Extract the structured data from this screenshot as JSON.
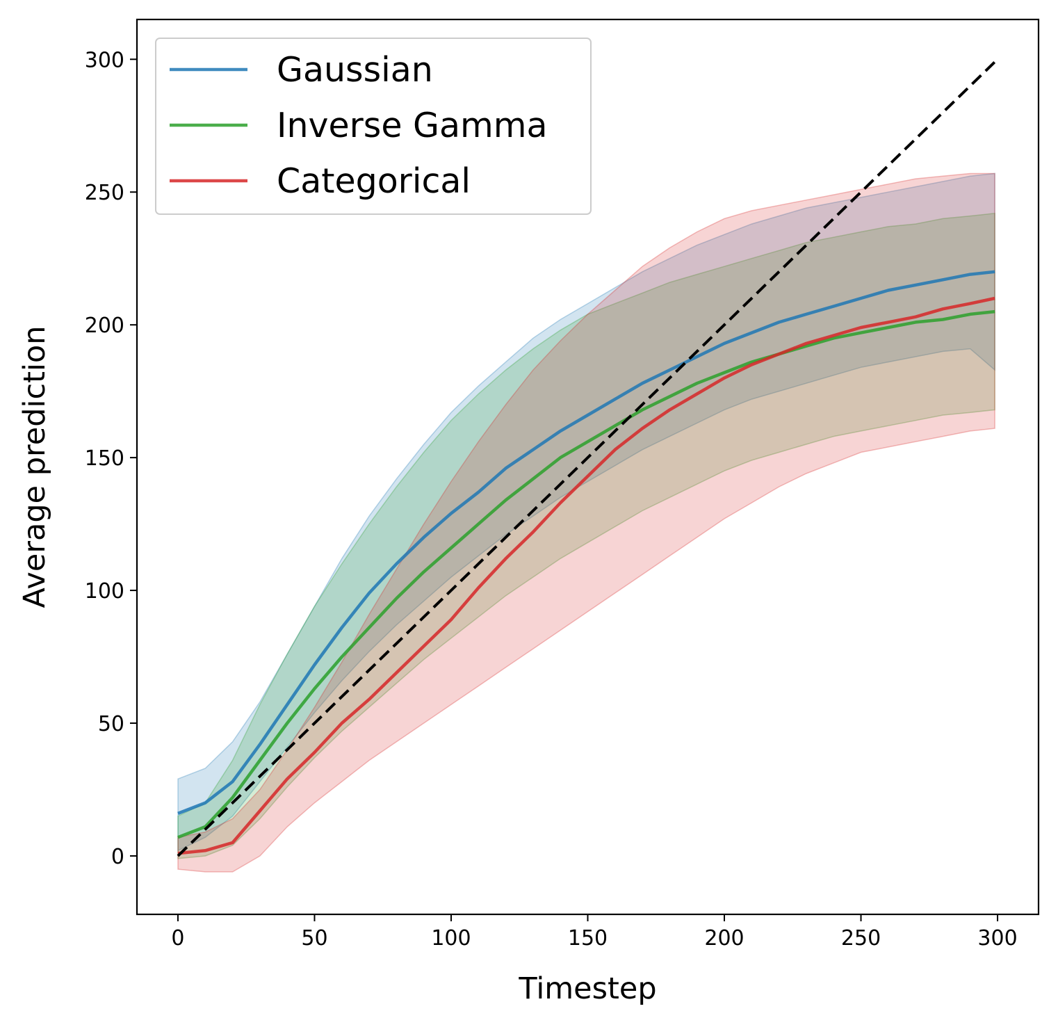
{
  "chart_data": {
    "type": "line",
    "title": "",
    "xlabel": "Timestep",
    "ylabel": "Average prediction",
    "xlim": [
      -15,
      315
    ],
    "ylim": [
      -22,
      315
    ],
    "xticks": [
      0,
      50,
      100,
      150,
      200,
      250,
      300
    ],
    "yticks": [
      0,
      50,
      100,
      150,
      200,
      250,
      300
    ],
    "grid": false,
    "legend_position": "top-left",
    "x": [
      0,
      10,
      20,
      30,
      40,
      50,
      60,
      70,
      80,
      90,
      100,
      110,
      120,
      130,
      140,
      150,
      160,
      170,
      180,
      190,
      200,
      210,
      220,
      230,
      240,
      250,
      260,
      270,
      280,
      290,
      299
    ],
    "series": [
      {
        "name": "Gaussian",
        "color": "#1f77b4",
        "values": [
          16,
          20,
          28,
          42,
          57,
          72,
          86,
          99,
          110,
          120,
          129,
          137,
          146,
          153,
          160,
          166,
          172,
          178,
          183,
          188,
          193,
          197,
          201,
          204,
          207,
          210,
          213,
          215,
          217,
          219,
          220
        ],
        "lower": [
          2,
          7,
          15,
          28,
          41,
          54,
          66,
          77,
          87,
          96,
          105,
          113,
          121,
          128,
          135,
          141,
          147,
          153,
          158,
          163,
          168,
          172,
          175,
          178,
          181,
          184,
          186,
          188,
          190,
          191,
          183
        ],
        "upper": [
          29,
          33,
          43,
          58,
          76,
          94,
          112,
          128,
          142,
          155,
          167,
          177,
          186,
          195,
          202,
          208,
          214,
          220,
          225,
          230,
          234,
          238,
          241,
          244,
          246,
          248,
          250,
          252,
          254,
          256,
          257
        ]
      },
      {
        "name": "Inverse Gamma",
        "color": "#2ca02c",
        "values": [
          7,
          11,
          22,
          36,
          50,
          63,
          75,
          86,
          97,
          107,
          116,
          125,
          134,
          142,
          150,
          156,
          162,
          168,
          173,
          178,
          182,
          186,
          189,
          192,
          195,
          197,
          199,
          201,
          202,
          204,
          205
        ],
        "lower": [
          -1,
          0,
          4,
          14,
          26,
          37,
          47,
          56,
          65,
          74,
          82,
          90,
          98,
          105,
          112,
          118,
          124,
          130,
          135,
          140,
          145,
          149,
          152,
          155,
          158,
          160,
          162,
          164,
          166,
          167,
          168
        ],
        "upper": [
          15,
          20,
          36,
          57,
          76,
          94,
          110,
          125,
          139,
          152,
          164,
          174,
          183,
          191,
          198,
          204,
          208,
          212,
          216,
          219,
          222,
          225,
          228,
          231,
          233,
          235,
          237,
          238,
          240,
          241,
          242
        ]
      },
      {
        "name": "Categorical",
        "color": "#d62728",
        "values": [
          1,
          2,
          5,
          17,
          29,
          39,
          50,
          59,
          69,
          79,
          89,
          101,
          112,
          122,
          133,
          143,
          153,
          161,
          168,
          174,
          180,
          185,
          189,
          193,
          196,
          199,
          201,
          203,
          206,
          208,
          210
        ],
        "lower": [
          -5,
          -6,
          -6,
          0,
          11,
          20,
          28,
          36,
          43,
          50,
          57,
          64,
          71,
          78,
          85,
          92,
          99,
          106,
          113,
          120,
          127,
          133,
          139,
          144,
          148,
          152,
          154,
          156,
          158,
          160,
          161
        ],
        "upper": [
          7,
          9,
          14,
          25,
          40,
          56,
          73,
          91,
          108,
          125,
          141,
          156,
          170,
          183,
          194,
          204,
          213,
          222,
          229,
          235,
          240,
          243,
          245,
          247,
          249,
          251,
          253,
          255,
          256,
          257,
          257
        ]
      }
    ],
    "reference_line": {
      "name": "identity",
      "style": "dashed",
      "color": "#000000",
      "x": [
        0,
        299
      ],
      "y": [
        0,
        299
      ]
    }
  }
}
